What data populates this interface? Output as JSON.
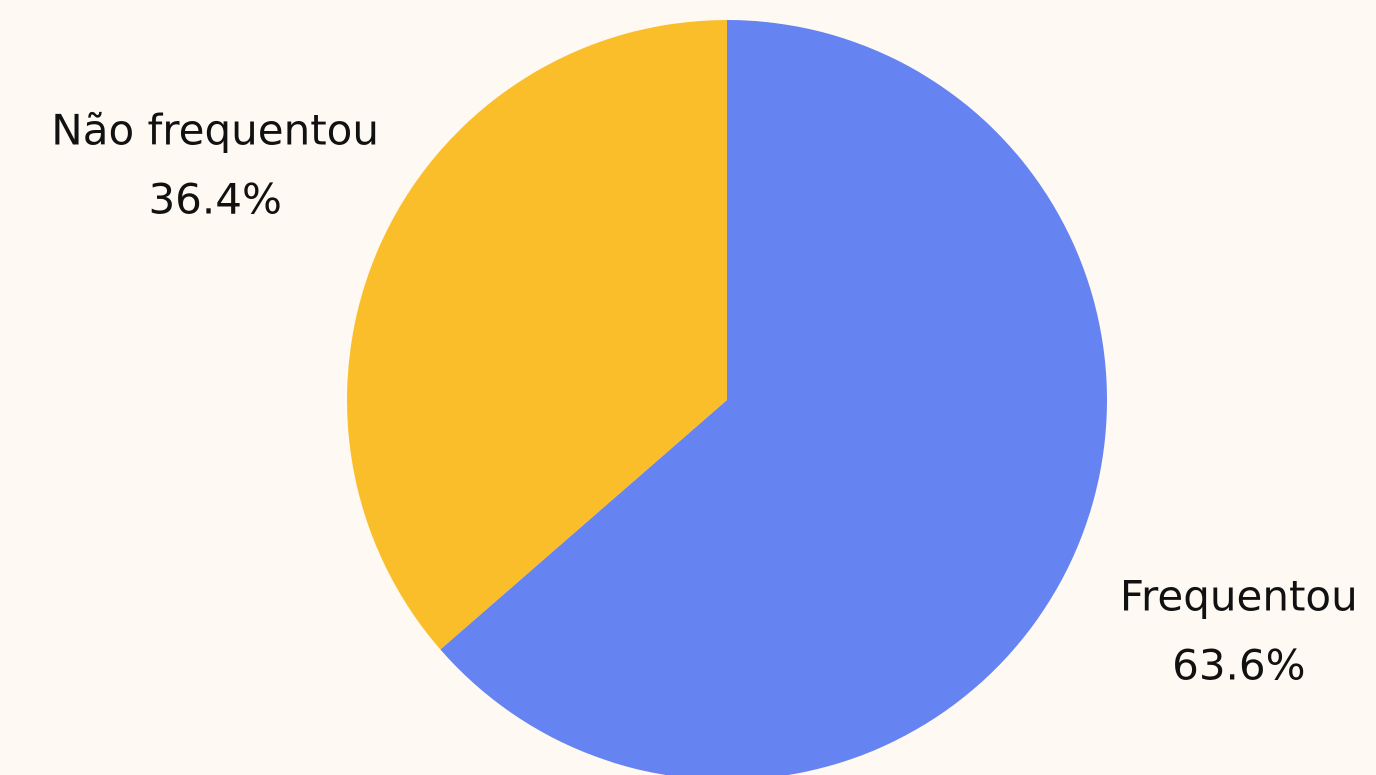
{
  "chart_data": {
    "type": "pie",
    "categories": [
      "Frequentou",
      "Não frequentou"
    ],
    "values": [
      63.6,
      36.4
    ],
    "value_labels": [
      "63.6%",
      "36.4%"
    ],
    "colors": [
      "#6683f2",
      "#fbbe2b"
    ]
  }
}
